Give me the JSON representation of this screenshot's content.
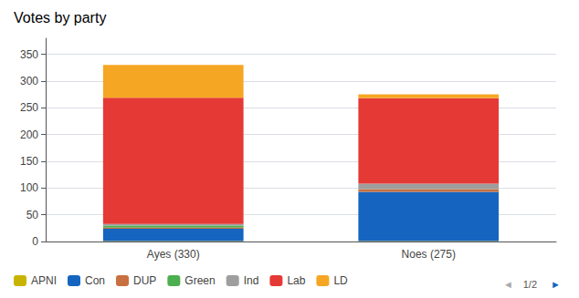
{
  "chart_data": {
    "type": "bar",
    "title": "Votes by party",
    "categories": [
      "Ayes (330)",
      "Noes (275)"
    ],
    "series": [
      {
        "name": "APNI",
        "color": "#c8b400",
        "values": [
          1,
          1
        ]
      },
      {
        "name": "Con",
        "color": "#1565c0",
        "values": [
          23,
          92
        ]
      },
      {
        "name": "DUP",
        "color": "#c87040",
        "values": [
          2,
          5
        ]
      },
      {
        "name": "Green",
        "color": "#4caf50",
        "values": [
          4,
          0
        ]
      },
      {
        "name": "Ind",
        "color": "#9e9e9e",
        "values": [
          3,
          10
        ]
      },
      {
        "name": "Lab",
        "color": "#e53935",
        "values": [
          236,
          160
        ]
      },
      {
        "name": "LD",
        "color": "#f5a623",
        "values": [
          61,
          7
        ]
      }
    ],
    "stacked": true,
    "ylim": [
      0,
      380
    ],
    "yticks": [
      0,
      50,
      100,
      150,
      200,
      250,
      300,
      350
    ],
    "grid": true,
    "legend": "lower left",
    "annotations": [
      "◄",
      "1/2",
      "►"
    ]
  }
}
